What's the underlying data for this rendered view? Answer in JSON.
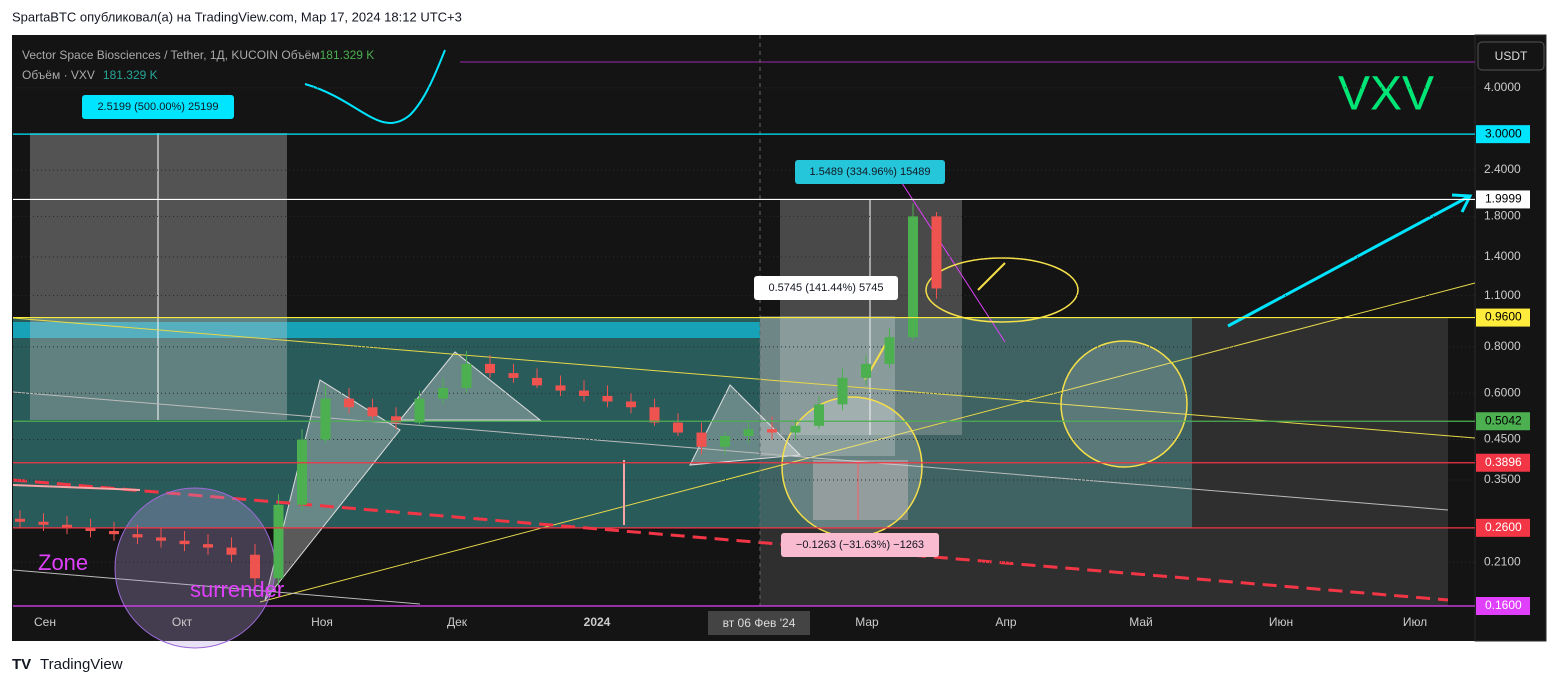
{
  "header": "SpartaBTC опубликовал(а) на TradingView.com, Мар 17, 2024 18:12 UTC+3",
  "footer": "TradingView",
  "chart_data": {
    "type": "candlestick",
    "title": "Vector Space Biosciences / Tether, 1Д, KUCOIN  Объём",
    "title_value": "181.329 K",
    "volume_label": "Объём · VXV",
    "volume_value": "181.329 K",
    "symbol": "VXV",
    "currency": "USDT",
    "crosshair_label": "вт 06 Фев '24",
    "log_scale": true,
    "grid": true,
    "up_color": "#4caf50",
    "down_color": "#ef5350",
    "ylim": [
      0.16,
      5.52
    ],
    "yticks": [
      {
        "value": 4,
        "label": "4.0000"
      },
      {
        "value": 2.4,
        "label": "2.4000"
      },
      {
        "value": 1.8,
        "label": "1.8000"
      },
      {
        "value": 1.4,
        "label": "1.4000"
      },
      {
        "value": 1.1,
        "label": "1.1000"
      },
      {
        "value": 0.8,
        "label": "0.8000"
      },
      {
        "value": 0.6,
        "label": "0.6000"
      },
      {
        "value": 0.45,
        "label": "0.4500"
      },
      {
        "value": 0.35,
        "label": "0.3500"
      },
      {
        "value": 0.21,
        "label": "0.2100"
      }
    ],
    "xtick_labels": [
      "Сен",
      "Окт",
      "Ноя",
      "Дек",
      "2024",
      "Мар",
      "Апр",
      "Май",
      "Июн",
      "Июл"
    ],
    "price_levels": [
      {
        "value": 3,
        "label": "3.0000",
        "color": "#00e5ff"
      },
      {
        "value": 1.9999,
        "label": "1.9999",
        "color": "#ffffff"
      },
      {
        "value": 0.96,
        "label": "0.9600",
        "color": "#ffeb3b"
      },
      {
        "value": 0.5042,
        "label": "0.5042",
        "color": "#4caf50"
      },
      {
        "value": 0.3896,
        "label": "0.3896",
        "color": "#f23645"
      },
      {
        "value": 0.26,
        "label": "0.2600",
        "color": "#f23645"
      },
      {
        "value": 0.16,
        "label": "0.1600",
        "color": "#e040fb"
      }
    ],
    "open": [
      0.275,
      0.27,
      0.265,
      0.26,
      0.255,
      0.25,
      0.245,
      0.24,
      0.235,
      0.23,
      0.22,
      0.19,
      0.3,
      0.45,
      0.58,
      0.55,
      0.52,
      0.5,
      0.58,
      0.62,
      0.72,
      0.68,
      0.66,
      0.63,
      0.61,
      0.59,
      0.57,
      0.55,
      0.5,
      0.47,
      0.43,
      0.46,
      0.48,
      0.47,
      0.49,
      0.56,
      0.66,
      0.72,
      0.85,
      1.8
    ],
    "high": [
      0.29,
      0.285,
      0.28,
      0.275,
      0.27,
      0.265,
      0.26,
      0.255,
      0.25,
      0.245,
      0.235,
      0.32,
      0.48,
      0.63,
      0.62,
      0.58,
      0.55,
      0.61,
      0.66,
      0.78,
      0.76,
      0.72,
      0.7,
      0.67,
      0.65,
      0.63,
      0.6,
      0.58,
      0.53,
      0.5,
      0.47,
      0.5,
      0.52,
      0.51,
      0.59,
      0.7,
      0.76,
      0.9,
      1.95,
      1.85
    ],
    "low": [
      0.26,
      0.255,
      0.25,
      0.245,
      0.24,
      0.235,
      0.23,
      0.225,
      0.22,
      0.21,
      0.175,
      0.18,
      0.29,
      0.44,
      0.53,
      0.51,
      0.48,
      0.49,
      0.56,
      0.6,
      0.66,
      0.64,
      0.62,
      0.59,
      0.57,
      0.55,
      0.53,
      0.49,
      0.46,
      0.41,
      0.41,
      0.44,
      0.45,
      0.45,
      0.48,
      0.54,
      0.63,
      0.7,
      0.83,
      1.08
    ],
    "close": [
      0.27,
      0.265,
      0.26,
      0.255,
      0.25,
      0.245,
      0.24,
      0.235,
      0.23,
      0.22,
      0.19,
      0.3,
      0.45,
      0.58,
      0.55,
      0.52,
      0.5,
      0.58,
      0.62,
      0.72,
      0.68,
      0.66,
      0.63,
      0.61,
      0.59,
      0.57,
      0.55,
      0.5,
      0.47,
      0.43,
      0.46,
      0.48,
      0.47,
      0.49,
      0.56,
      0.66,
      0.72,
      0.85,
      1.8,
      1.15
    ],
    "annotations": [
      {
        "text": "2.5199 (500.00%) 25199",
        "color": "#00e5ff"
      },
      {
        "text": "1.5489 (334.96%) 15489",
        "color": "#26c6da"
      },
      {
        "text": "0.5745 (141.44%) 5745",
        "color": "#ffffff"
      },
      {
        "text": "−0.1263 (−31.63%) −1263",
        "color": "#f8bbd0"
      },
      {
        "text": "Zone",
        "color": "#e040fb"
      },
      {
        "text": "surrender",
        "color": "#e040fb"
      }
    ]
  }
}
